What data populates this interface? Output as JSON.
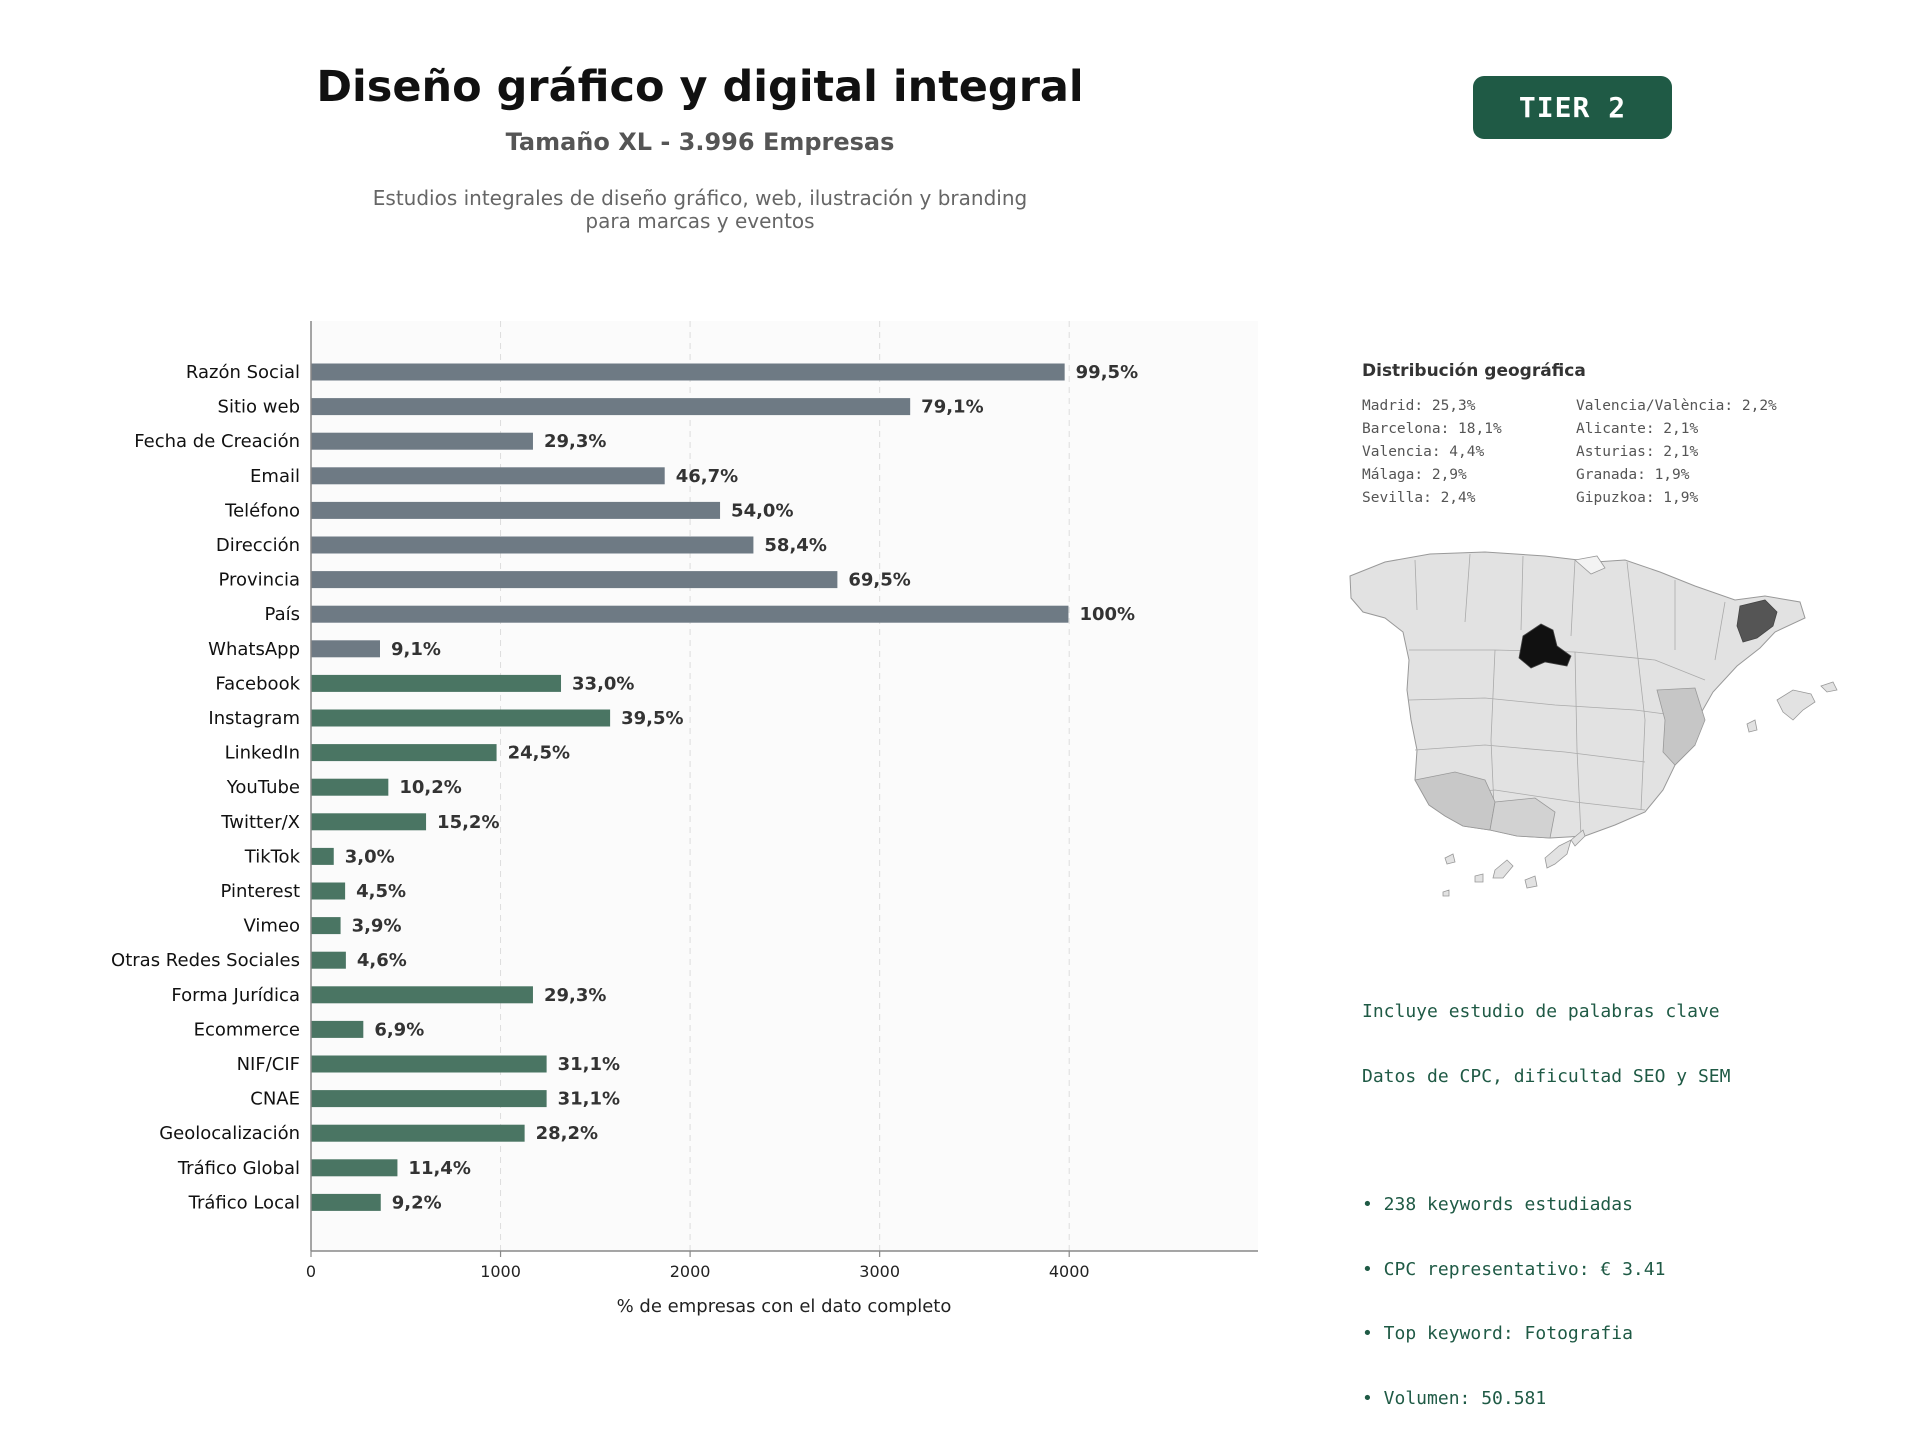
{
  "header": {
    "title": "Diseño gráfico y digital integral",
    "subtitle": "Tamaño XL - 3.996 Empresas",
    "description_line1": "Estudios integrales de diseño gráfico, web, ilustración y branding",
    "description_line2": "para marcas y eventos",
    "tier_badge": "TIER 2"
  },
  "colors": {
    "gray_bar": "#6e7a84",
    "green_bar": "#4a7563",
    "tier_bg": "#1f5a45",
    "plot_bg": "#fbfbfb"
  },
  "chart_data": {
    "type": "bar",
    "orientation": "horizontal",
    "xlabel": "% de empresas con el dato completo",
    "xlim": [
      0,
      4996
    ],
    "xticks": [
      0,
      1000,
      2000,
      3000,
      4000
    ],
    "grid": "vertical dashed",
    "categories": [
      "Razón Social",
      "Sitio web",
      "Fecha de Creación",
      "Email",
      "Teléfono",
      "Dirección",
      "Provincia",
      "País",
      "WhatsApp",
      "Facebook",
      "Instagram",
      "LinkedIn",
      "YouTube",
      "Twitter/X",
      "TikTok",
      "Pinterest",
      "Vimeo",
      "Otras Redes Sociales",
      "Forma Jurídica",
      "Ecommerce",
      "NIF/CIF",
      "CNAE",
      "Geolocalización",
      "Tráfico Global",
      "Tráfico Local"
    ],
    "values": [
      3976,
      3161,
      1171,
      1866,
      2158,
      2334,
      2777,
      3996,
      364,
      1319,
      1578,
      979,
      408,
      607,
      120,
      180,
      156,
      184,
      1171,
      276,
      1243,
      1243,
      1127,
      456,
      368
    ],
    "labels": [
      "99,5%",
      "79,1%",
      "29,3%",
      "46,7%",
      "54,0%",
      "58,4%",
      "69,5%",
      "100%",
      "9,1%",
      "33,0%",
      "39,5%",
      "24,5%",
      "10,2%",
      "15,2%",
      "3,0%",
      "4,5%",
      "3,9%",
      "4,6%",
      "29,3%",
      "6,9%",
      "31,1%",
      "31,1%",
      "28,2%",
      "11,4%",
      "9,2%"
    ],
    "bar_color_groups": [
      "gray",
      "gray",
      "gray",
      "gray",
      "gray",
      "gray",
      "gray",
      "gray",
      "gray",
      "green",
      "green",
      "green",
      "green",
      "green",
      "green",
      "green",
      "green",
      "green",
      "green",
      "green",
      "green",
      "green",
      "green",
      "green",
      "green"
    ]
  },
  "geo": {
    "title": "Distribución geográfica",
    "items": [
      "Madrid: 25,3%",
      "Valencia/València: 2,2%",
      "Barcelona: 18,1%",
      "Alicante: 2,1%",
      "Valencia: 4,4%",
      "Asturias: 2,1%",
      "Málaga: 2,9%",
      "Granada: 1,9%",
      "Sevilla: 2,4%",
      "Gipuzkoa: 1,9%"
    ]
  },
  "keywords": {
    "line1": "Incluye estudio de palabras clave",
    "line2": "Datos de CPC, dificultad SEO y SEM",
    "bullets": [
      "• 238 keywords estudiadas",
      "• CPC representativo: € 3.41",
      "• Top keyword: Fotografia",
      "• Volumen: 50.581"
    ]
  }
}
